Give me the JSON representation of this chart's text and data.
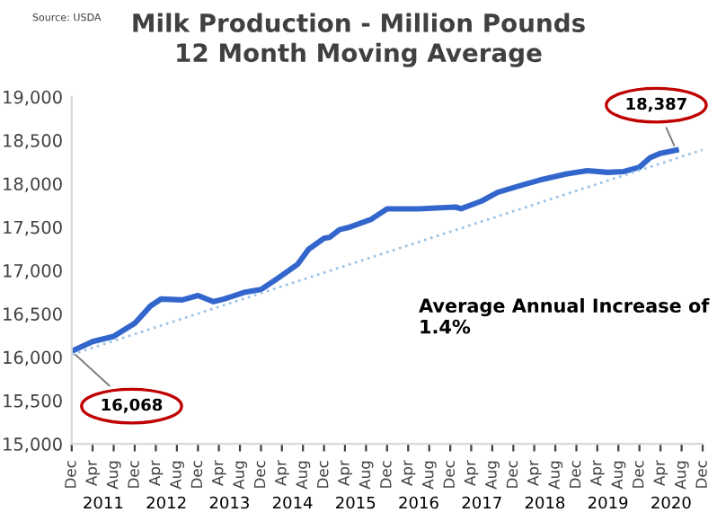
{
  "chart_data": {
    "type": "line",
    "title": "Milk Production - Million Pounds\n12 Month Moving Average",
    "series": [
      {
        "color": "#3366cc",
        "line_style": "solid",
        "x": [
          "2010-12",
          "2011-04",
          "2011-08",
          "2011-12",
          "2012-03",
          "2012-05",
          "2012-09",
          "2012-12",
          "2013-03",
          "2013-05",
          "2013-09",
          "2013-12",
          "2014-03",
          "2014-07",
          "2014-09",
          "2014-12",
          "2015-01",
          "2015-03",
          "2015-05",
          "2015-09",
          "2015-12",
          "2016-06",
          "2017-01",
          "2017-02",
          "2017-06",
          "2017-09",
          "2018-02",
          "2018-05",
          "2018-10",
          "2019-02",
          "2019-06",
          "2019-09",
          "2019-12",
          "2020-02",
          "2020-04",
          "2020-07"
        ],
        "values": [
          16068,
          16180,
          16240,
          16390,
          16590,
          16670,
          16660,
          16710,
          16640,
          16670,
          16750,
          16780,
          16900,
          17070,
          17240,
          17370,
          17380,
          17470,
          17500,
          17590,
          17710,
          17710,
          17730,
          17710,
          17800,
          17900,
          17990,
          18040,
          18110,
          18150,
          18130,
          18140,
          18190,
          18300,
          18350,
          18387
        ]
      },
      {
        "color": "#9dc3e6",
        "line_style": "dotted",
        "x": [
          "2010-12",
          "2020-12"
        ],
        "values": [
          16030,
          18390
        ]
      }
    ],
    "xlim": [
      "2010-12",
      "2020-12"
    ],
    "xticks": [
      {
        "value": "2010-12",
        "label": "Dec"
      },
      {
        "value": "2011-04",
        "label": "Apr"
      },
      {
        "value": "2011-08",
        "label": "Aug"
      },
      {
        "value": "2011-12",
        "label": "Dec"
      },
      {
        "value": "2012-04",
        "label": "Apr"
      },
      {
        "value": "2012-08",
        "label": "Aug"
      },
      {
        "value": "2012-12",
        "label": "Dec"
      },
      {
        "value": "2013-04",
        "label": "Apr"
      },
      {
        "value": "2013-08",
        "label": "Aug"
      },
      {
        "value": "2013-12",
        "label": "Dec"
      },
      {
        "value": "2014-04",
        "label": "Apr"
      },
      {
        "value": "2014-08",
        "label": "Aug"
      },
      {
        "value": "2014-12",
        "label": "Dec"
      },
      {
        "value": "2015-04",
        "label": "Apr"
      },
      {
        "value": "2015-08",
        "label": "Aug"
      },
      {
        "value": "2015-12",
        "label": "Dec"
      },
      {
        "value": "2016-04",
        "label": "Apr"
      },
      {
        "value": "2016-08",
        "label": "Aug"
      },
      {
        "value": "2016-12",
        "label": "Dec"
      },
      {
        "value": "2017-04",
        "label": "Apr"
      },
      {
        "value": "2017-08",
        "label": "Aug"
      },
      {
        "value": "2017-12",
        "label": "Dec"
      },
      {
        "value": "2018-04",
        "label": "Apr"
      },
      {
        "value": "2018-08",
        "label": "Aug"
      },
      {
        "value": "2018-12",
        "label": "Dec"
      },
      {
        "value": "2019-04",
        "label": "Apr"
      },
      {
        "value": "2019-08",
        "label": "Aug"
      },
      {
        "value": "2019-12",
        "label": "Dec"
      },
      {
        "value": "2020-04",
        "label": "Apr"
      },
      {
        "value": "2020-08",
        "label": "Aug"
      },
      {
        "value": "2020-12",
        "label": "Dec"
      }
    ],
    "ylim": [
      15000,
      19000
    ],
    "yticks": [
      {
        "value": 15000,
        "label": "15,000"
      },
      {
        "value": 15500,
        "label": "15,500"
      },
      {
        "value": 16000,
        "label": "16,000"
      },
      {
        "value": 16500,
        "label": "16,500"
      },
      {
        "value": 17000,
        "label": "17,000"
      },
      {
        "value": 17500,
        "label": "17,500"
      },
      {
        "value": 18000,
        "label": "18,000"
      },
      {
        "value": 18500,
        "label": "18,500"
      },
      {
        "value": 19000,
        "label": "19,000"
      }
    ],
    "grid": false,
    "legend": false,
    "marker": "none",
    "annotations": [
      "Source: USDA",
      {
        "text": "16,068",
        "x": "2010-12",
        "y": 16068
      },
      {
        "text": "18,387",
        "x": "2020-07",
        "y": 18387
      },
      "Average Annual Increase of\n1.4%",
      "2011",
      "2012",
      "2013",
      "2014",
      "2015",
      "2016",
      "2017",
      "2018",
      "2019",
      "2020"
    ]
  }
}
